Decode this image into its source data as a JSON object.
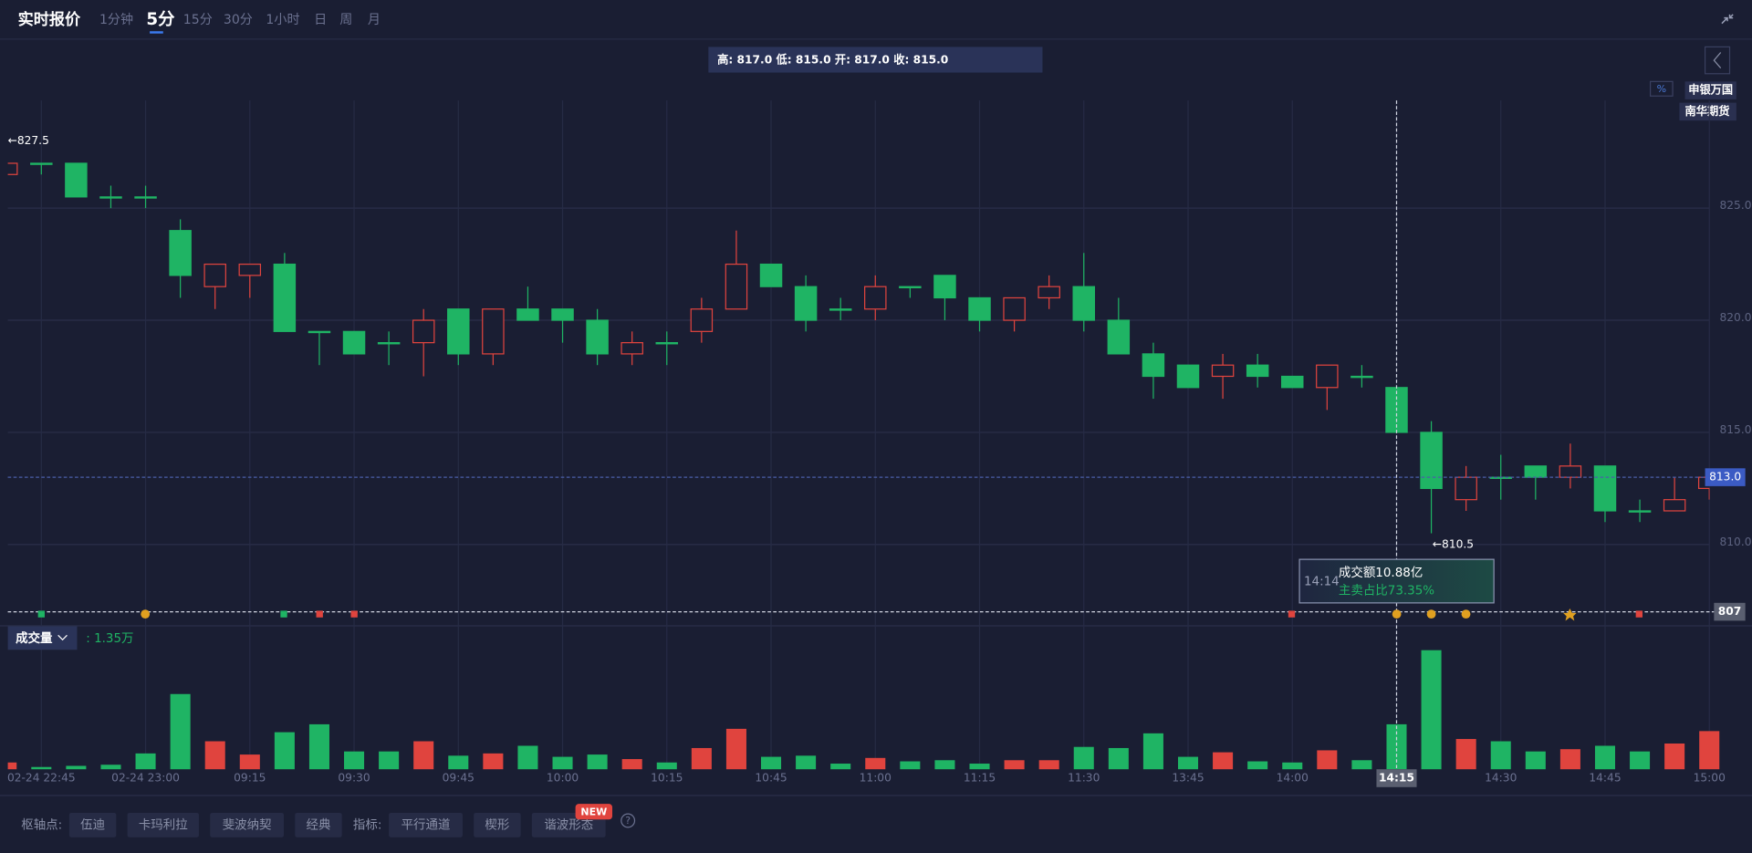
{
  "ui": {
    "title": "实时报价",
    "tabs": [
      "1分钟",
      "5分",
      "15分",
      "30分",
      "1小时",
      "日",
      "周",
      "月"
    ],
    "ohlc_summary": "高: 817.0 低: 815.0 开: 817.0 收: 815.0",
    "percent_toggle": "%",
    "brokers": [
      "申银万国",
      "南华期货"
    ],
    "tooltip": {
      "time": "14:14",
      "turnover": "成交额10.88亿",
      "sell_ratio": "主卖占比73.35%"
    },
    "toolbar": {
      "pivot_label": "枢轴点:",
      "pivots": [
        "伍迪",
        "卡玛利拉",
        "斐波纳契",
        "经典"
      ],
      "indicator_label": "指标:",
      "indicators": [
        "平行通道",
        "楔形",
        "谐波形态"
      ],
      "new_badge": "NEW",
      "help": "?"
    }
  },
  "chart_data": {
    "type": "candlestick",
    "categories": [
      null,
      "02-24 22:45",
      null,
      null,
      "02-24 23:00",
      null,
      null,
      "09:15",
      null,
      null,
      "09:30",
      null,
      null,
      "09:45",
      null,
      null,
      "10:00",
      null,
      null,
      "10:15",
      null,
      null,
      "10:45",
      null,
      null,
      "11:00",
      null,
      null,
      "11:15",
      null,
      null,
      "11:30",
      null,
      null,
      "13:45",
      null,
      null,
      "14:00",
      null,
      null,
      "14:15",
      null,
      null,
      "14:30",
      null,
      null,
      "14:45",
      null,
      null,
      "15:00"
    ],
    "open": [
      826.5,
      827,
      827,
      825.5,
      825.5,
      824,
      821.5,
      822,
      822.5,
      819.5,
      819.5,
      819,
      819,
      820.5,
      818.5,
      820.5,
      820.5,
      820,
      818.5,
      819,
      819.5,
      820.5,
      822.5,
      821.5,
      820.5,
      820.5,
      821.5,
      822,
      821,
      820,
      821,
      821.5,
      820,
      818.5,
      818,
      817.5,
      818,
      817.5,
      817,
      817.5,
      817,
      815,
      812,
      813,
      813.5,
      813,
      813.5,
      811.5,
      811.5,
      812.5
    ],
    "high": [
      827.5,
      827,
      827,
      826,
      826,
      824.5,
      822.5,
      822.5,
      823,
      819.5,
      819.5,
      819.5,
      820.5,
      820.5,
      820.5,
      821.5,
      820.5,
      820.5,
      819.5,
      819.5,
      821,
      824,
      822.5,
      822,
      821,
      822,
      821.5,
      822,
      821,
      821,
      822,
      823,
      821,
      819,
      818,
      818.5,
      818.5,
      817.5,
      818,
      818,
      817,
      815.5,
      813.5,
      814,
      813.5,
      814.5,
      813.5,
      812,
      813,
      813
    ],
    "low": [
      825.5,
      826.5,
      825.5,
      825,
      825,
      821,
      820.5,
      821,
      819.5,
      818,
      818.5,
      818,
      817.5,
      818,
      818,
      820,
      819,
      818,
      818,
      818,
      819,
      820.5,
      821.5,
      819.5,
      820,
      820,
      821,
      820,
      819.5,
      819.5,
      820.5,
      819.5,
      818.5,
      816.5,
      817,
      816.5,
      817,
      817,
      816,
      817,
      815,
      810.5,
      811.5,
      812,
      812,
      812.5,
      811,
      811,
      811.5,
      812
    ],
    "close": [
      827,
      827,
      825.5,
      825.5,
      825.5,
      822,
      822.5,
      822.5,
      819.5,
      819.5,
      818.5,
      819,
      820,
      818.5,
      820.5,
      820,
      820,
      818.5,
      819,
      819,
      820.5,
      822.5,
      821.5,
      820,
      820.5,
      821.5,
      821.5,
      821,
      820,
      821,
      821.5,
      820,
      818.5,
      817.5,
      817,
      818,
      817.5,
      817,
      818,
      817.5,
      815,
      812.5,
      813,
      813,
      813,
      813.5,
      811.5,
      811.5,
      812,
      813
    ],
    "up_color": "#e0443e",
    "down_color": "#1fb464",
    "ylim": [
      806.4,
      829.8
    ],
    "yticks": [
      {
        "value": 810,
        "label": "810.0"
      },
      {
        "value": 815,
        "label": "815.0"
      },
      {
        "value": 820,
        "label": "820.0"
      },
      {
        "value": 825,
        "label": "825.0"
      }
    ],
    "grid": true,
    "annotations": [
      {
        "value": 827.5,
        "label": "←827.5"
      },
      {
        "value": 810.5,
        "label": "←810.5"
      }
    ],
    "last_price": {
      "value": 813,
      "label": "813.0"
    },
    "crosshair_price": {
      "value": 807,
      "label": "807"
    },
    "volume": {
      "name": "成交量",
      "current": ": 1.35万",
      "values": [
        0.24,
        0.08,
        0.12,
        0.16,
        0.56,
        2.66,
        0.99,
        0.52,
        1.31,
        1.59,
        0.63,
        0.63,
        0.99,
        0.48,
        0.56,
        0.83,
        0.44,
        0.52,
        0.36,
        0.24,
        0.75,
        1.43,
        0.44,
        0.48,
        0.2,
        0.4,
        0.28,
        0.32,
        0.2,
        0.32,
        0.32,
        0.79,
        0.75,
        1.27,
        0.44,
        0.6,
        0.28,
        0.24,
        0.67,
        0.32,
        1.59,
        4.21,
        1.07,
        0.99,
        0.63,
        0.71,
        0.83,
        0.63,
        0.91,
        1.35
      ],
      "ylim": [
        0,
        4.5
      ]
    }
  }
}
